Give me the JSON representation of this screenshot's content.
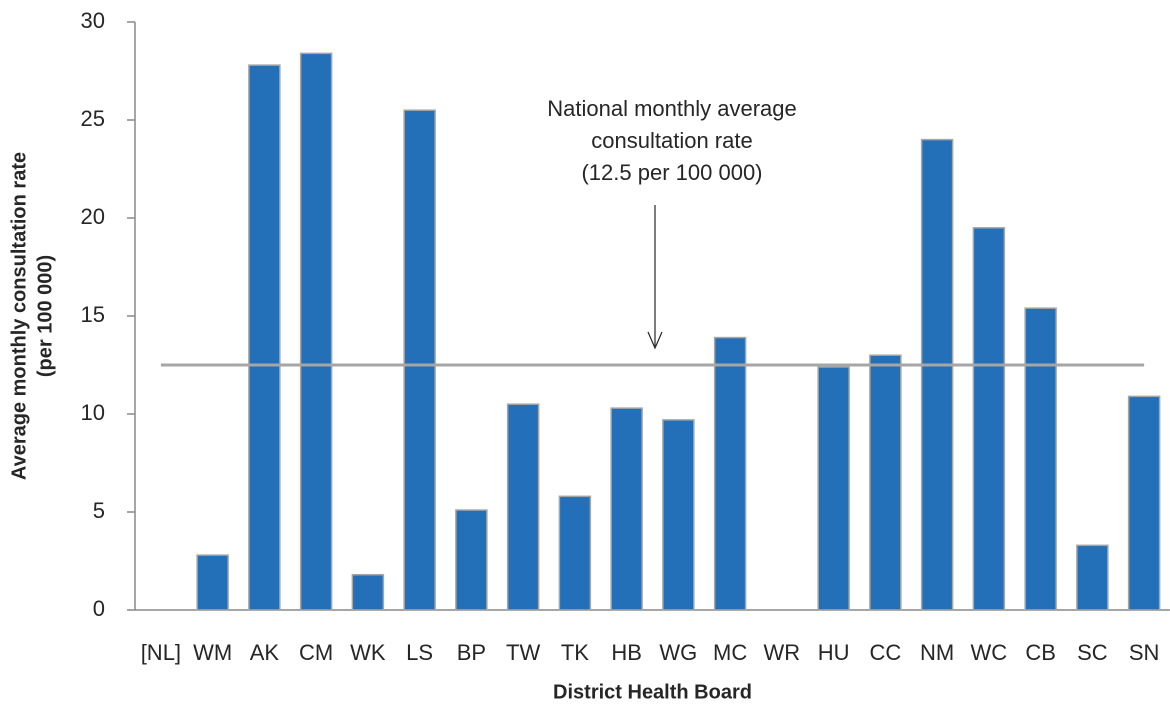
{
  "chart_data": {
    "type": "bar",
    "categories": [
      "[NL]",
      "WM",
      "AK",
      "CM",
      "WK",
      "LS",
      "BP",
      "TW",
      "TK",
      "HB",
      "WG",
      "MC",
      "WR",
      "HU",
      "CC",
      "NM",
      "WC",
      "CB",
      "SC",
      "SN"
    ],
    "values": [
      null,
      2.8,
      27.8,
      28.4,
      1.8,
      25.5,
      5.1,
      10.5,
      5.8,
      10.3,
      9.7,
      13.9,
      null,
      12.4,
      13.0,
      24.0,
      19.5,
      15.4,
      3.3,
      10.9
    ],
    "color": "#2370b8",
    "ylim": [
      0,
      30
    ],
    "yticks": [
      0,
      5,
      10,
      15,
      20,
      25,
      30
    ],
    "y_label": [
      "Average monthly consultation rate",
      "(per 100 000)"
    ],
    "x_label": "District Health Board",
    "reference_line": 12.5,
    "annotation": [
      "National monthly average",
      "consultation rate",
      "(12.5 per 100 000)"
    ]
  }
}
